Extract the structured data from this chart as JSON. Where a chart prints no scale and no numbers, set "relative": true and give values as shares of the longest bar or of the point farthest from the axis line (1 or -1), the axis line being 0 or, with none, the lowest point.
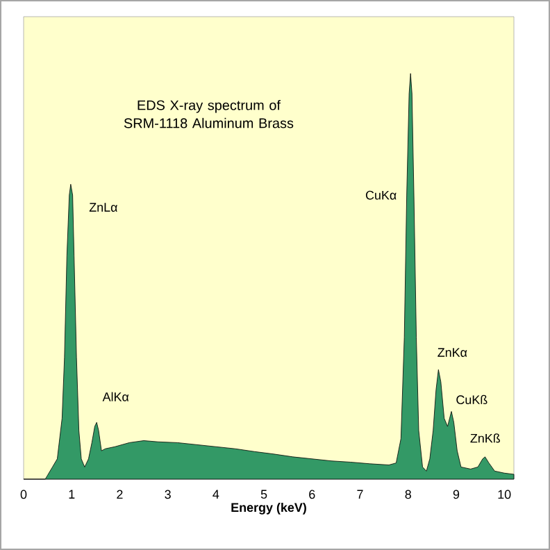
{
  "chart_data": {
    "type": "area",
    "title": "EDS X-ray spectrum of SRM-1118 Aluminum Brass",
    "xlabel": "Energy (keV)",
    "relative": true,
    "color": "#339966",
    "xlim": [
      0,
      10.2
    ],
    "xticks": [
      0,
      1,
      2,
      3,
      4,
      5,
      6,
      7,
      8,
      9,
      10
    ],
    "grid": false,
    "x": [
      0,
      0.45,
      0.5,
      0.6,
      0.7,
      0.8,
      0.85,
      0.9,
      0.95,
      0.98,
      1.02,
      1.05,
      1.1,
      1.15,
      1.2,
      1.27,
      1.35,
      1.42,
      1.48,
      1.52,
      1.56,
      1.62,
      1.7,
      1.9,
      2.2,
      2.5,
      2.8,
      3.2,
      3.6,
      4.0,
      4.4,
      4.8,
      5.2,
      5.6,
      6.0,
      6.4,
      6.8,
      7.2,
      7.6,
      7.75,
      7.85,
      7.92,
      7.97,
      8.02,
      8.05,
      8.08,
      8.12,
      8.17,
      8.22,
      8.3,
      8.38,
      8.45,
      8.52,
      8.58,
      8.63,
      8.68,
      8.75,
      8.82,
      8.9,
      8.95,
      9.02,
      9.1,
      9.3,
      9.45,
      9.55,
      9.6,
      9.68,
      9.8,
      10.0,
      10.2
    ],
    "values": [
      0,
      0,
      0.01,
      0.03,
      0.05,
      0.15,
      0.3,
      0.55,
      0.7,
      0.727,
      0.7,
      0.55,
      0.3,
      0.12,
      0.05,
      0.03,
      0.05,
      0.09,
      0.13,
      0.14,
      0.12,
      0.07,
      0.075,
      0.08,
      0.09,
      0.095,
      0.092,
      0.09,
      0.085,
      0.08,
      0.075,
      0.068,
      0.062,
      0.055,
      0.05,
      0.045,
      0.042,
      0.038,
      0.035,
      0.04,
      0.1,
      0.35,
      0.7,
      0.95,
      1.0,
      0.95,
      0.7,
      0.35,
      0.12,
      0.03,
      0.02,
      0.05,
      0.12,
      0.22,
      0.27,
      0.24,
      0.15,
      0.13,
      0.167,
      0.14,
      0.07,
      0.03,
      0.025,
      0.03,
      0.05,
      0.055,
      0.04,
      0.02,
      0.015,
      0.012
    ],
    "annotations": [
      {
        "text": "ZnLα",
        "x": 0.98,
        "y": 0.727
      },
      {
        "text": "AlKα",
        "x": 1.52,
        "y": 0.14
      },
      {
        "text": "CuKα",
        "x": 7.97,
        "y": 0.7
      },
      {
        "text": "ZnKα",
        "x": 8.63,
        "y": 0.27
      },
      {
        "text": "CuKß",
        "x": 8.9,
        "y": 0.167
      },
      {
        "text": "ZnKß",
        "x": 9.6,
        "y": 0.055
      }
    ]
  }
}
